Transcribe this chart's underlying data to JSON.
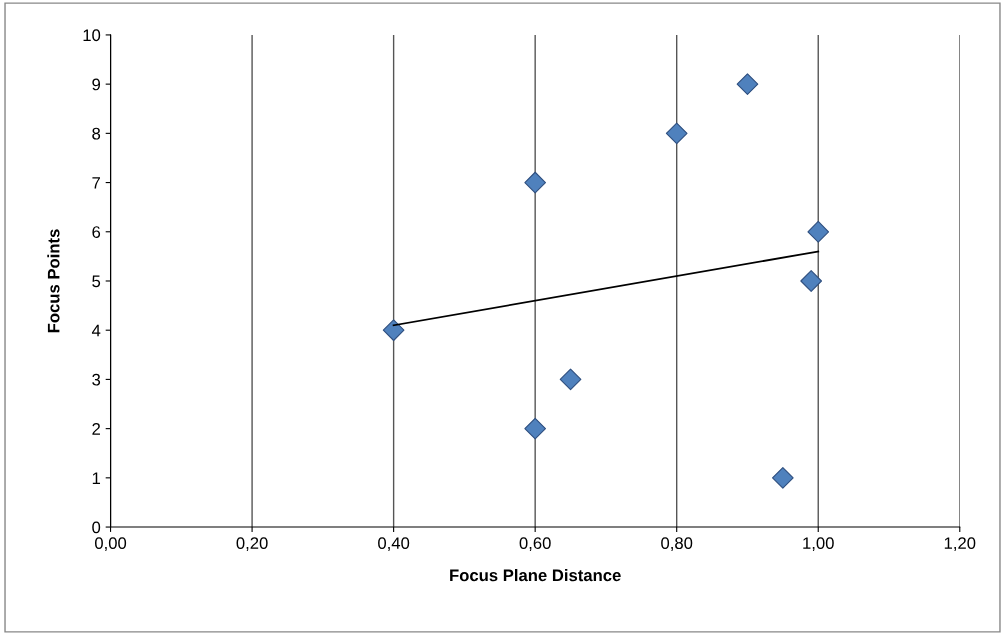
{
  "chart_data": {
    "type": "scatter",
    "xlabel": "Focus Plane Distance",
    "ylabel": "Focus Points",
    "xlim": [
      0,
      1.2
    ],
    "ylim": [
      0,
      10
    ],
    "xticks": [
      {
        "value": 0,
        "label": "0,00"
      },
      {
        "value": 0.2,
        "label": "0,20"
      },
      {
        "value": 0.4,
        "label": "0,40"
      },
      {
        "value": 0.6,
        "label": "0,60"
      },
      {
        "value": 0.8,
        "label": "0,80"
      },
      {
        "value": 1.0,
        "label": "1,00"
      },
      {
        "value": 1.2,
        "label": "1,20"
      }
    ],
    "yticks": [
      0,
      1,
      2,
      3,
      4,
      5,
      6,
      7,
      8,
      9,
      10
    ],
    "grid": "x",
    "legend": false,
    "series": [
      {
        "color": "#4f81bd",
        "marker": "diamond",
        "x": [
          0.4,
          0.6,
          0.6,
          0.65,
          0.8,
          0.9,
          0.95,
          0.99,
          1.0
        ],
        "values": [
          4,
          7,
          2,
          3,
          8,
          9,
          1,
          5,
          6
        ]
      },
      {
        "type": "line",
        "color": "#000000",
        "marker": "none",
        "line_style": "solid",
        "x": [
          0.4,
          1.0
        ],
        "values": [
          4.1,
          5.6
        ]
      }
    ]
  }
}
